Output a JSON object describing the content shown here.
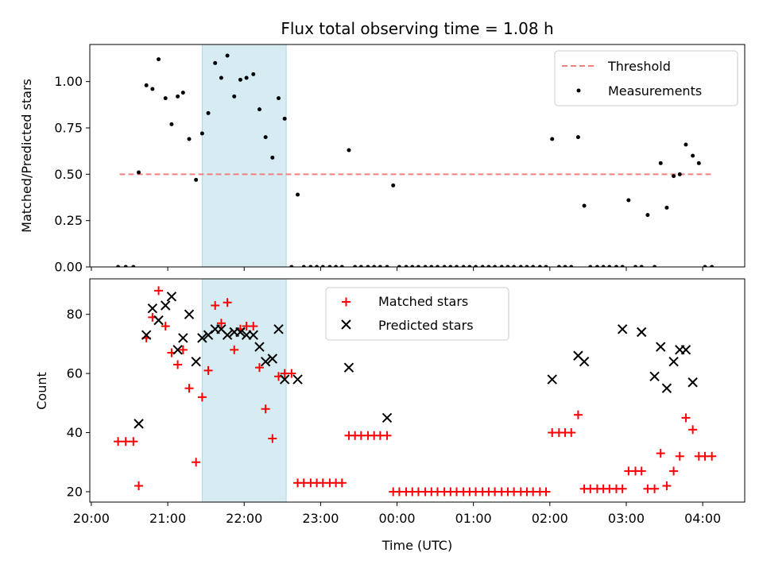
{
  "figure": {
    "title": "Flux total observing time = 1.08 h"
  },
  "chart_data": [
    {
      "type": "scatter",
      "ylabel": "Matched/Predicted stars",
      "ylim": [
        0,
        1.2
      ],
      "yticks": [
        0,
        0.25,
        0.5,
        0.75,
        1.0
      ],
      "ytick_labels": [
        "0.00",
        "0.25",
        "0.50",
        "0.75",
        "1.00"
      ],
      "xlim_hours": [
        19.98,
        28.55
      ],
      "legend_position": "top-right",
      "shaded_span_hours": [
        21.45,
        22.55
      ],
      "threshold": {
        "name": "Threshold",
        "value": 0.5,
        "x_range_hours": [
          20.37,
          28.15
        ],
        "color": "#f08080"
      },
      "series": [
        {
          "name": "Measurements",
          "color": "#000000",
          "x_hours": [
            20.35,
            20.45,
            20.55,
            20.62,
            20.72,
            20.8,
            20.88,
            20.97,
            21.05,
            21.13,
            21.2,
            21.28,
            21.37,
            21.45,
            21.53,
            21.62,
            21.7,
            21.78,
            21.87,
            21.95,
            22.03,
            22.12,
            22.2,
            22.28,
            22.37,
            22.45,
            22.53,
            22.62,
            22.7,
            22.78,
            22.87,
            22.95,
            23.03,
            23.12,
            23.2,
            23.28,
            23.37,
            23.45,
            23.53,
            23.62,
            23.7,
            23.78,
            23.87,
            23.95,
            24.03,
            24.12,
            24.2,
            24.28,
            24.37,
            24.45,
            24.53,
            24.62,
            24.7,
            24.78,
            24.87,
            24.95,
            25.03,
            25.12,
            25.2,
            25.28,
            25.37,
            25.45,
            25.53,
            25.62,
            25.7,
            25.78,
            25.87,
            25.95,
            26.03,
            26.12,
            26.2,
            26.28,
            26.37,
            26.45,
            26.53,
            26.62,
            26.7,
            26.78,
            26.87,
            26.95,
            27.03,
            27.12,
            27.2,
            27.28,
            27.37,
            27.45,
            27.53,
            27.62,
            27.7,
            27.78,
            27.87,
            27.95,
            28.03,
            28.12
          ],
          "y": [
            0,
            0,
            0,
            0.51,
            0.98,
            0.96,
            1.12,
            0.91,
            0.77,
            0.92,
            0.94,
            0.69,
            0.47,
            0.72,
            0.83,
            1.1,
            1.02,
            1.14,
            0.92,
            1.01,
            1.02,
            1.04,
            0.85,
            0.7,
            0.59,
            0.91,
            0.8,
            0,
            0.39,
            0,
            0,
            0,
            0,
            0,
            0,
            0,
            0.63,
            0,
            0,
            0,
            0,
            0,
            0,
            0.44,
            0,
            0,
            0,
            0,
            0,
            0,
            0,
            0,
            0,
            0,
            0,
            0,
            0,
            0,
            0,
            0,
            0,
            0,
            0,
            0,
            0,
            0,
            0,
            0,
            0.69,
            0,
            0,
            0,
            0.7,
            0.33,
            0,
            0,
            0,
            0,
            0,
            0,
            0.36,
            0,
            0,
            0.28,
            0,
            0.56,
            0.32,
            0.49,
            0.5,
            0.66,
            0.6,
            0.56,
            0,
            0
          ]
        }
      ]
    },
    {
      "type": "scatter",
      "xlabel": "Time (UTC)",
      "ylabel": "Count",
      "ylim": [
        16.5,
        92
      ],
      "yticks": [
        20,
        40,
        60,
        80
      ],
      "ytick_labels": [
        "20",
        "40",
        "60",
        "80"
      ],
      "xlim_hours": [
        19.98,
        28.55
      ],
      "xticks_hours": [
        20,
        21,
        22,
        23,
        24,
        25,
        26,
        27,
        28
      ],
      "xtick_labels": [
        "20:00",
        "21:00",
        "22:00",
        "23:00",
        "00:00",
        "01:00",
        "02:00",
        "03:00",
        "04:00"
      ],
      "legend_position": "top-center",
      "shaded_span_hours": [
        21.45,
        22.55
      ],
      "series": [
        {
          "name": "Matched stars",
          "marker": "plus",
          "color": "#ff0000",
          "x_hours": [
            20.35,
            20.45,
            20.55,
            20.62,
            20.72,
            20.8,
            20.88,
            20.97,
            21.05,
            21.13,
            21.2,
            21.28,
            21.37,
            21.45,
            21.53,
            21.62,
            21.7,
            21.78,
            21.87,
            21.95,
            22.03,
            22.12,
            22.2,
            22.28,
            22.37,
            22.45,
            22.53,
            22.62,
            22.7,
            22.78,
            22.87,
            22.95,
            23.03,
            23.12,
            23.2,
            23.28,
            23.37,
            23.45,
            23.53,
            23.62,
            23.7,
            23.78,
            23.87,
            23.95,
            24.03,
            24.12,
            24.2,
            24.28,
            24.37,
            24.45,
            24.53,
            24.62,
            24.7,
            24.78,
            24.87,
            24.95,
            25.03,
            25.12,
            25.2,
            25.28,
            25.37,
            25.45,
            25.53,
            25.62,
            25.7,
            25.78,
            25.87,
            25.95,
            26.03,
            26.12,
            26.2,
            26.28,
            26.37,
            26.45,
            26.53,
            26.62,
            26.7,
            26.78,
            26.87,
            26.95,
            27.03,
            27.12,
            27.2,
            27.28,
            27.37,
            27.45,
            27.53,
            27.62,
            27.7,
            27.78,
            27.87,
            27.95,
            28.03,
            28.12
          ],
          "y": [
            37,
            37,
            37,
            22,
            72,
            79,
            88,
            76,
            67,
            63,
            68,
            55,
            30,
            52,
            61,
            83,
            77,
            84,
            68,
            75,
            76,
            76,
            62,
            48,
            38,
            59,
            60,
            60,
            23,
            23,
            23,
            23,
            23,
            23,
            23,
            23,
            39,
            39,
            39,
            39,
            39,
            39,
            39,
            20,
            20,
            20,
            20,
            20,
            20,
            20,
            20,
            20,
            20,
            20,
            20,
            20,
            20,
            20,
            20,
            20,
            20,
            20,
            20,
            20,
            20,
            20,
            20,
            20,
            40,
            40,
            40,
            40,
            46,
            21,
            21,
            21,
            21,
            21,
            21,
            21,
            27,
            27,
            27,
            21,
            21,
            33,
            22,
            27,
            32,
            45,
            41,
            32,
            32,
            32
          ]
        },
        {
          "name": "Predicted stars",
          "marker": "x",
          "color": "#000000",
          "x_hours": [
            20.62,
            20.72,
            20.8,
            20.88,
            20.97,
            21.05,
            21.13,
            21.2,
            21.28,
            21.37,
            21.45,
            21.53,
            21.62,
            21.7,
            21.78,
            21.87,
            21.95,
            22.03,
            22.12,
            22.2,
            22.28,
            22.37,
            22.45,
            22.53,
            22.7,
            23.37,
            23.87,
            26.03,
            26.37,
            26.45,
            26.95,
            27.2,
            27.37,
            27.45,
            27.53,
            27.62,
            27.7,
            27.78,
            27.87
          ],
          "y": [
            43,
            73,
            82,
            78,
            83,
            86,
            68,
            72,
            80,
            64,
            72,
            73,
            75,
            75,
            73,
            74,
            74,
            73,
            73,
            69,
            64,
            65,
            75,
            58,
            58,
            62,
            45,
            58,
            66,
            64,
            75,
            74,
            59,
            69,
            55,
            64,
            68,
            68,
            57
          ]
        }
      ]
    }
  ]
}
